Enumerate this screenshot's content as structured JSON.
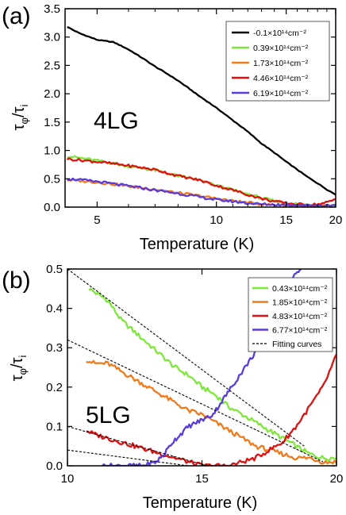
{
  "chart_data": [
    {
      "type": "line",
      "panel_label": "(a)",
      "inset_label": "4LG",
      "xlabel": "Temperature (K)",
      "ylabel": "τφ/τi",
      "x_scale": "log",
      "xlim": [
        4.15,
        20
      ],
      "ylim": [
        0,
        3.5
      ],
      "x_ticks": [
        5,
        10,
        15,
        20
      ],
      "y_ticks": [
        0.0,
        0.5,
        1.0,
        1.5,
        2.0,
        2.5,
        3.0,
        3.5
      ],
      "legend_position": "top-right",
      "series": [
        {
          "name": "-0.1×10¹⁴cm⁻²",
          "color": "#000000",
          "x": [
            4.2,
            4.5,
            5.0,
            5.5,
            6.0,
            7.0,
            8.0,
            9.0,
            10.0,
            11.0,
            12.0,
            13.0,
            14.0,
            15.0,
            16.0,
            17.0,
            18.0,
            19.0,
            20.0
          ],
          "y": [
            3.18,
            3.07,
            2.95,
            2.91,
            2.78,
            2.48,
            2.23,
            1.97,
            1.75,
            1.53,
            1.33,
            1.12,
            0.96,
            0.8,
            0.66,
            0.53,
            0.42,
            0.31,
            0.22
          ]
        },
        {
          "name": "0.39×10¹⁴cm⁻²",
          "color": "#7ee83a",
          "x": [
            4.2,
            5.0,
            6.0,
            7.0,
            8.0,
            9.0,
            10.0,
            11.0,
            12.0,
            13.0,
            14.0,
            15.0,
            17.0,
            20.0
          ],
          "y": [
            0.9,
            0.82,
            0.72,
            0.65,
            0.55,
            0.48,
            0.38,
            0.3,
            0.23,
            0.16,
            0.11,
            0.07,
            0.04,
            0.03
          ]
        },
        {
          "name": "1.73×10¹⁴cm⁻²",
          "color": "#f07a1a",
          "x": [
            4.2,
            5.0,
            6.0,
            7.0,
            8.0,
            9.0,
            10.0,
            11.0,
            12.0,
            13.0,
            15.0,
            17.0,
            20.0
          ],
          "y": [
            0.48,
            0.44,
            0.37,
            0.31,
            0.25,
            0.2,
            0.15,
            0.11,
            0.08,
            0.05,
            0.03,
            0.02,
            0.02
          ]
        },
        {
          "name": "4.46×10¹⁴cm⁻²",
          "color": "#e01010",
          "x": [
            4.2,
            5.0,
            6.0,
            7.0,
            8.0,
            9.0,
            10.0,
            11.0,
            12.0,
            13.0,
            14.0,
            15.0,
            16.0,
            17.0,
            18.0,
            19.0,
            20.0
          ],
          "y": [
            0.85,
            0.8,
            0.73,
            0.66,
            0.55,
            0.48,
            0.38,
            0.3,
            0.22,
            0.15,
            0.1,
            0.07,
            0.05,
            0.04,
            0.05,
            0.08,
            0.14
          ]
        },
        {
          "name": "6.19×10¹⁴cm⁻²",
          "color": "#5a3bdc",
          "x": [
            4.2,
            5.0,
            6.0,
            7.0,
            8.0,
            9.0,
            10.0,
            11.0,
            12.0,
            13.0,
            15.0,
            17.0,
            20.0
          ],
          "y": [
            0.5,
            0.45,
            0.37,
            0.3,
            0.24,
            0.18,
            0.13,
            0.1,
            0.07,
            0.05,
            0.04,
            0.03,
            0.03
          ]
        }
      ]
    },
    {
      "type": "line",
      "panel_label": "(b)",
      "inset_label": "5LG",
      "xlabel": "Temperature (K)",
      "ylabel": "τφ/τi",
      "x_scale": "linear",
      "xlim": [
        10,
        20
      ],
      "ylim": [
        0,
        0.5
      ],
      "x_ticks": [
        10,
        15,
        20
      ],
      "y_ticks": [
        0.0,
        0.1,
        0.2,
        0.3,
        0.4,
        0.5
      ],
      "legend_position": "top-right",
      "series": [
        {
          "name": "0.43×10¹⁴cm⁻²",
          "color": "#7ee83a",
          "x": [
            10.8,
            11.5,
            12.0,
            12.5,
            13.0,
            13.5,
            14.0,
            14.5,
            15.0,
            15.5,
            16.0,
            16.5,
            17.0,
            17.5,
            18.0,
            18.5,
            19.0,
            19.5,
            20.0
          ],
          "y": [
            0.45,
            0.42,
            0.37,
            0.34,
            0.31,
            0.28,
            0.25,
            0.23,
            0.2,
            0.18,
            0.15,
            0.13,
            0.11,
            0.09,
            0.07,
            0.05,
            0.03,
            0.02,
            0.02
          ]
        },
        {
          "name": "1.85×10¹⁴cm⁻²",
          "color": "#f07a1a",
          "x": [
            10.7,
            11.0,
            11.5,
            12.0,
            12.5,
            13.0,
            13.5,
            14.0,
            14.5,
            15.0,
            15.5,
            16.0,
            16.5,
            17.0,
            17.5,
            18.0,
            18.5,
            19.0,
            19.5,
            20.0
          ],
          "y": [
            0.27,
            0.26,
            0.26,
            0.24,
            0.22,
            0.2,
            0.18,
            0.16,
            0.14,
            0.13,
            0.11,
            0.09,
            0.07,
            0.05,
            0.04,
            0.03,
            0.02,
            0.02,
            0.01,
            0.01
          ]
        },
        {
          "name": "4.83×10¹⁴cm⁻²",
          "color": "#e01010",
          "x": [
            10.7,
            11.0,
            11.5,
            12.0,
            12.5,
            13.0,
            13.5,
            14.0,
            14.5,
            15.0,
            15.5,
            16.0,
            16.5,
            17.0,
            17.5,
            18.0,
            18.5,
            19.0,
            19.5,
            20.0
          ],
          "y": [
            0.09,
            0.08,
            0.07,
            0.06,
            0.05,
            0.04,
            0.03,
            0.02,
            0.01,
            0.0,
            0.0,
            0.0,
            0.01,
            0.02,
            0.04,
            0.06,
            0.1,
            0.15,
            0.2,
            0.28
          ]
        },
        {
          "name": "6.77×10¹⁴cm⁻²",
          "color": "#5a3bdc",
          "x": [
            11.3,
            12.0,
            12.8,
            13.3,
            13.6,
            13.9,
            14.2,
            14.5,
            14.8,
            15.1,
            15.4,
            15.7,
            16.0,
            16.3,
            16.6,
            16.9,
            17.2,
            17.5,
            17.8,
            18.1,
            18.4,
            18.7
          ],
          "y": [
            0.0,
            0.0,
            0.0,
            0.01,
            0.03,
            0.06,
            0.08,
            0.1,
            0.11,
            0.12,
            0.13,
            0.16,
            0.19,
            0.22,
            0.25,
            0.28,
            0.32,
            0.36,
            0.4,
            0.44,
            0.48,
            0.5
          ]
        },
        {
          "name": "Fitting curves",
          "color": "#000000",
          "dashed": true,
          "segments": [
            {
              "x": [
                10.0,
                18.8
              ],
              "y": [
                0.5,
                0.05
              ]
            },
            {
              "x": [
                10.0,
                19.5
              ],
              "y": [
                0.32,
                0.01
              ]
            },
            {
              "x": [
                10.0,
                15.2
              ],
              "y": [
                0.1,
                0.0
              ]
            },
            {
              "x": [
                10.0,
                14.5
              ],
              "y": [
                0.04,
                0.0
              ]
            }
          ]
        }
      ]
    }
  ]
}
